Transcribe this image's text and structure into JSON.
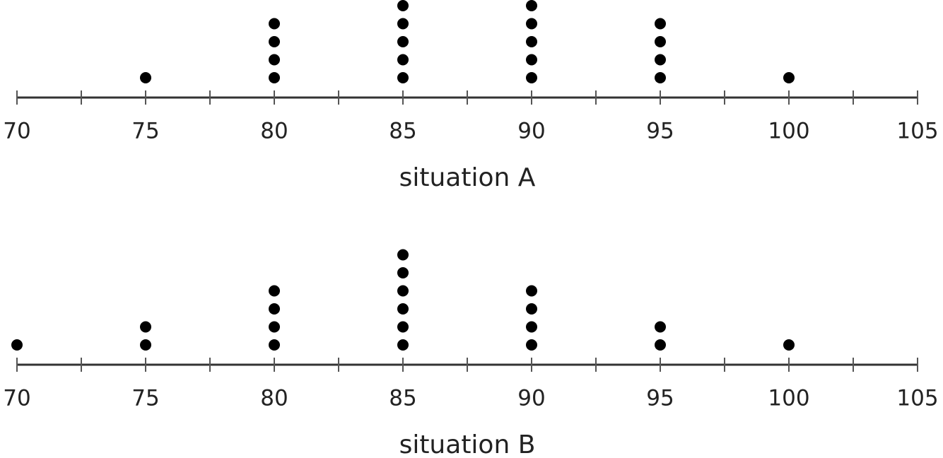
{
  "chart_data": [
    {
      "type": "dot",
      "title": "situation A",
      "x": [
        75,
        80,
        85,
        90,
        95,
        100
      ],
      "values": [
        1,
        4,
        5,
        5,
        4,
        1
      ],
      "xlim": [
        70,
        105
      ],
      "xticks": [
        70,
        75,
        80,
        85,
        90,
        95,
        100,
        105
      ],
      "minor_xticks": [
        72.5,
        77.5,
        82.5,
        87.5,
        92.5,
        97.5,
        102.5
      ],
      "color": "#000000"
    },
    {
      "type": "dot",
      "title": "situation B",
      "x": [
        70,
        75,
        80,
        85,
        90,
        95,
        100
      ],
      "values": [
        1,
        2,
        4,
        6,
        4,
        2,
        1
      ],
      "xlim": [
        70,
        105
      ],
      "xticks": [
        70,
        75,
        80,
        85,
        90,
        95,
        100,
        105
      ],
      "minor_xticks": [
        72.5,
        77.5,
        82.5,
        87.5,
        92.5,
        97.5,
        102.5
      ],
      "color": "#000000"
    }
  ]
}
